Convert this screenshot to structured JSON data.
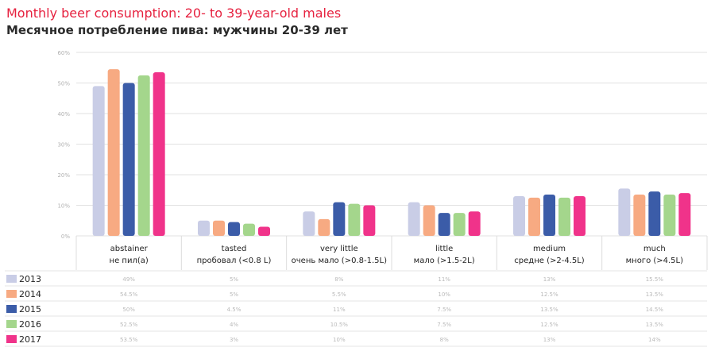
{
  "title": "Monthly beer consumption: 20- to 39-year-old males",
  "subtitle": "Месячное потребление пива: мужчины 20-39 лет",
  "chart_data": {
    "type": "bar",
    "title": "Monthly beer consumption: 20- to 39-year-old males",
    "subtitle": "Месячное потребление пива: мужчины 20-39 лет",
    "categories": [
      {
        "en": "abstainer",
        "ru": "не пил(а)"
      },
      {
        "en": "tasted",
        "ru": "пробовал (<0.8 L)"
      },
      {
        "en": "very little",
        "ru": "очень мало (>0.8-1.5L)"
      },
      {
        "en": "little",
        "ru": "мало (>1.5-2L)"
      },
      {
        "en": "medium",
        "ru": "средне (>2-4.5L)"
      },
      {
        "en": "much",
        "ru": "много (>4.5L)"
      }
    ],
    "series": [
      {
        "name": "2013",
        "color": "#c9cde6",
        "values": [
          49,
          5,
          8,
          11,
          13,
          15.5
        ]
      },
      {
        "name": "2014",
        "color": "#f7aa82",
        "values": [
          54.5,
          5,
          5.5,
          10,
          12.5,
          13.5
        ]
      },
      {
        "name": "2015",
        "color": "#3b5ca8",
        "values": [
          50,
          4.5,
          11,
          7.5,
          13.5,
          14.5
        ]
      },
      {
        "name": "2016",
        "color": "#a4d68c",
        "values": [
          52.5,
          4,
          10.5,
          7.5,
          12.5,
          13.5
        ]
      },
      {
        "name": "2017",
        "color": "#f0338a",
        "values": [
          53.5,
          3,
          10,
          8,
          13,
          14
        ]
      }
    ],
    "ylim": [
      0,
      60
    ],
    "yticks": [
      0,
      10,
      20,
      30,
      40,
      50,
      60
    ],
    "grid": true,
    "legend": "table-left"
  }
}
